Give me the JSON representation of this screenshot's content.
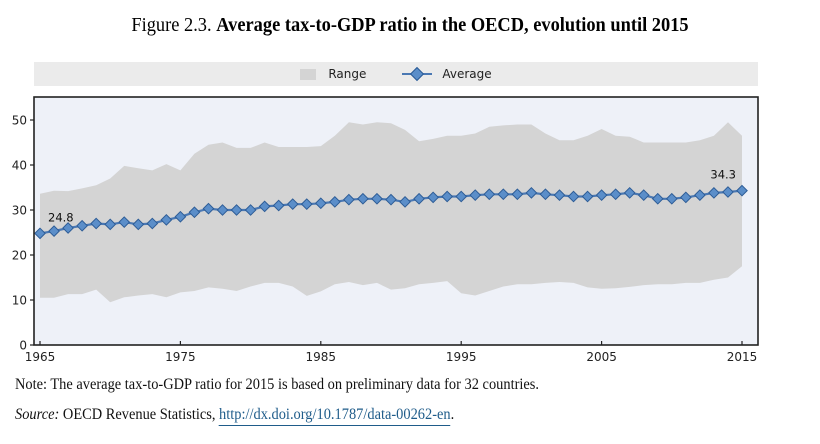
{
  "title": {
    "prefix": "Figure 2.3.",
    "main": "Average tax-to-GDP ratio in the OECD, evolution until 2015"
  },
  "legend": {
    "items": [
      {
        "label": "Range",
        "kind": "area",
        "color": "#d4d4d4"
      },
      {
        "label": "Average",
        "kind": "line-diamond",
        "color": "#4a78b3"
      }
    ]
  },
  "note": "Note: The average tax-to-GDP ratio for 2015 is based on preliminary data for 32 countries.",
  "source": {
    "label": "Source:",
    "text": " OECD Revenue Statistics, ",
    "link": "http://dx.doi.org/10.1787/data-00262-en",
    "trailing": "."
  },
  "chart_data": {
    "type": "area",
    "title": "Average tax-to-GDP ratio in the OECD, evolution until 2015",
    "xlabel": "",
    "ylabel": "",
    "xlim": [
      1965,
      2015
    ],
    "ylim": [
      0,
      55
    ],
    "xticks": [
      1965,
      1975,
      1985,
      1995,
      2005,
      2015
    ],
    "yticks": [
      0,
      10,
      20,
      30,
      40,
      50
    ],
    "grid": false,
    "legend_position": "top-center",
    "colors": {
      "plot_background": "#eef1f8",
      "range_fill": "#d4d4d4",
      "average_line": "#4a78b3",
      "average_marker": "#5b8ec9",
      "average_marker_edge": "#2d5c96"
    },
    "x": [
      1965,
      1966,
      1967,
      1968,
      1969,
      1970,
      1971,
      1972,
      1973,
      1974,
      1975,
      1976,
      1977,
      1978,
      1979,
      1980,
      1981,
      1982,
      1983,
      1984,
      1985,
      1986,
      1987,
      1988,
      1989,
      1990,
      1991,
      1992,
      1993,
      1994,
      1995,
      1996,
      1997,
      1998,
      1999,
      2000,
      2001,
      2002,
      2003,
      2004,
      2005,
      2006,
      2007,
      2008,
      2009,
      2010,
      2011,
      2012,
      2013,
      2014,
      2015
    ],
    "series": [
      {
        "name": "Average",
        "type": "line",
        "values": [
          24.8,
          25.3,
          26.0,
          26.5,
          27.0,
          26.8,
          27.3,
          26.8,
          27.0,
          27.8,
          28.5,
          29.5,
          30.3,
          30.0,
          30.0,
          30.0,
          30.8,
          31.0,
          31.3,
          31.3,
          31.5,
          31.8,
          32.3,
          32.5,
          32.5,
          32.3,
          31.8,
          32.5,
          32.8,
          33.0,
          33.0,
          33.3,
          33.5,
          33.5,
          33.5,
          33.8,
          33.5,
          33.3,
          33.0,
          33.0,
          33.3,
          33.5,
          33.8,
          33.3,
          32.5,
          32.5,
          32.8,
          33.3,
          33.8,
          34.0,
          34.3
        ]
      },
      {
        "name": "Range",
        "type": "area",
        "upper": [
          33.6,
          34.3,
          34.2,
          34.8,
          35.5,
          37.0,
          39.8,
          39.3,
          38.8,
          40.2,
          38.8,
          42.5,
          44.5,
          45.0,
          43.8,
          43.8,
          45.0,
          44.0,
          44.0,
          44.0,
          44.2,
          46.5,
          49.5,
          49.0,
          49.5,
          49.3,
          47.8,
          45.3,
          45.8,
          46.5,
          46.5,
          47.0,
          48.5,
          48.8,
          49.0,
          49.0,
          47.0,
          45.5,
          45.5,
          46.5,
          48.0,
          46.5,
          46.3,
          45.0,
          45.0,
          45.0,
          45.0,
          45.5,
          46.5,
          49.5,
          46.5
        ],
        "lower": [
          10.5,
          10.5,
          11.3,
          11.3,
          12.3,
          9.5,
          10.6,
          11.0,
          11.3,
          10.6,
          11.7,
          12.0,
          12.8,
          12.5,
          12.0,
          13.0,
          13.8,
          13.8,
          13.0,
          10.9,
          11.9,
          13.5,
          14.0,
          13.3,
          13.8,
          12.3,
          12.6,
          13.5,
          13.8,
          14.2,
          11.5,
          11.0,
          12.0,
          13.0,
          13.5,
          13.5,
          13.8,
          14.0,
          13.8,
          12.8,
          12.5,
          12.6,
          12.9,
          13.3,
          13.5,
          13.5,
          13.8,
          13.8,
          14.5,
          15.0,
          17.5
        ]
      }
    ],
    "annotations": [
      {
        "x": 1965,
        "y": 24.8,
        "text": "24.8"
      },
      {
        "x": 2015,
        "y": 34.3,
        "text": "34.3"
      }
    ]
  }
}
